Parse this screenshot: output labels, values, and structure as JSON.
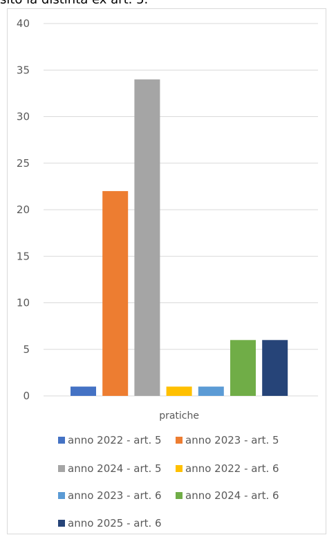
{
  "top_text": "sito la distinta ex art. 5.",
  "chart_data": {
    "type": "bar",
    "categories": [
      "pratiche"
    ],
    "series": [
      {
        "name": "anno 2022 - art. 5",
        "values": [
          1
        ],
        "color": "#4472c4"
      },
      {
        "name": "anno 2023 - art. 5",
        "values": [
          22
        ],
        "color": "#ed7d31"
      },
      {
        "name": "anno 2024 - art. 5",
        "values": [
          34
        ],
        "color": "#a5a5a5"
      },
      {
        "name": "anno 2022 - art. 6",
        "values": [
          1
        ],
        "color": "#ffc000"
      },
      {
        "name": "anno 2023 - art. 6",
        "values": [
          1
        ],
        "color": "#5b9bd5"
      },
      {
        "name": "anno 2024 - art. 6",
        "values": [
          6
        ],
        "color": "#70ad47"
      },
      {
        "name": "anno 2025 - art. 6",
        "values": [
          6
        ],
        "color": "#264478"
      }
    ],
    "ylim": [
      0,
      40
    ],
    "yticks": [
      0,
      5,
      10,
      15,
      20,
      25,
      30,
      35,
      40
    ],
    "grid": true,
    "legend": "bottom"
  }
}
